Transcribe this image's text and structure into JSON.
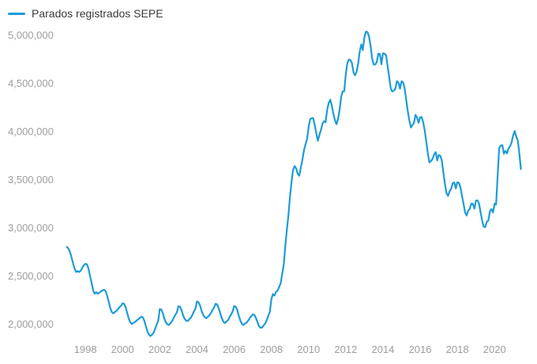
{
  "legend": {
    "label": "Parados registrados SEPE"
  },
  "colors": {
    "line": "#1e9bd8",
    "axis_text": "#9e9e9e",
    "legend_text": "#3a3a3a",
    "background": "#ffffff"
  },
  "chart_data": {
    "type": "line",
    "title": "",
    "xlabel": "",
    "ylabel": "",
    "grid": false,
    "legend_position": "top-left",
    "series_name": "Parados registrados SEPE",
    "frequency": "monthly",
    "x_start": "1997-01",
    "x_end": "2021-06",
    "ylim": [
      1850000,
      5100000
    ],
    "y_ticks": [
      {
        "label": "5,000,000",
        "value": 5000000
      },
      {
        "label": "4,500,000",
        "value": 4500000
      },
      {
        "label": "4,000,000",
        "value": 4000000
      },
      {
        "label": "3,500,000",
        "value": 3500000
      },
      {
        "label": "3,000,000",
        "value": 3000000
      },
      {
        "label": "2,500,000",
        "value": 2500000
      },
      {
        "label": "2,000,000",
        "value": 2000000
      }
    ],
    "x_ticks": [
      {
        "label": "1998",
        "year": 1998
      },
      {
        "label": "2000",
        "year": 2000
      },
      {
        "label": "2002",
        "year": 2002
      },
      {
        "label": "2004",
        "year": 2004
      },
      {
        "label": "2006",
        "year": 2006
      },
      {
        "label": "2008",
        "year": 2008
      },
      {
        "label": "2010",
        "year": 2010
      },
      {
        "label": "2012",
        "year": 2012
      },
      {
        "label": "2014",
        "year": 2014
      },
      {
        "label": "2016",
        "year": 2016
      },
      {
        "label": "2018",
        "year": 2018
      },
      {
        "label": "2020",
        "year": 2020
      }
    ],
    "values": [
      2805000,
      2790000,
      2755000,
      2700000,
      2640000,
      2580000,
      2545000,
      2555000,
      2545000,
      2560000,
      2590000,
      2615000,
      2630000,
      2625000,
      2580000,
      2505000,
      2430000,
      2355000,
      2320000,
      2335000,
      2320000,
      2330000,
      2345000,
      2355000,
      2360000,
      2350000,
      2300000,
      2240000,
      2175000,
      2130000,
      2115000,
      2130000,
      2140000,
      2160000,
      2180000,
      2195000,
      2220000,
      2215000,
      2175000,
      2120000,
      2060000,
      2020000,
      2005000,
      2020000,
      2025000,
      2040000,
      2055000,
      2065000,
      2080000,
      2075000,
      2040000,
      1985000,
      1930000,
      1895000,
      1880000,
      1895000,
      1915000,
      1955000,
      2000000,
      2040000,
      2160000,
      2155000,
      2115000,
      2060000,
      2020000,
      2000000,
      1995000,
      2015000,
      2035000,
      2070000,
      2100000,
      2125000,
      2190000,
      2185000,
      2150000,
      2095000,
      2060000,
      2040000,
      2035000,
      2055000,
      2070000,
      2100000,
      2135000,
      2165000,
      2240000,
      2230000,
      2195000,
      2140000,
      2100000,
      2075000,
      2065000,
      2080000,
      2095000,
      2120000,
      2150000,
      2175000,
      2215000,
      2210000,
      2170000,
      2115000,
      2065000,
      2030000,
      2015000,
      2030000,
      2045000,
      2075000,
      2105000,
      2135000,
      2190000,
      2185000,
      2150000,
      2090000,
      2040000,
      2005000,
      1995000,
      2010000,
      2020000,
      2040000,
      2065000,
      2085000,
      2105000,
      2100000,
      2070000,
      2025000,
      1985000,
      1965000,
      1970000,
      1990000,
      2010000,
      2045000,
      2090000,
      2130000,
      2261925,
      2315331,
      2300975,
      2338517,
      2353575,
      2390424,
      2426916,
      2530001,
      2625368,
      2818026,
      2989269,
      3128963,
      3327801,
      3481859,
      3605402,
      3644880,
      3620139,
      3564889,
      3544095,
      3629080,
      3709447,
      3808353,
      3868946,
      3923603,
      4048493,
      4130625,
      4142000,
      4142425,
      4066202,
      3982368,
      3908578,
      3969661,
      4017763,
      4085976,
      4110294,
      4100073,
      4231003,
      4299263,
      4333669,
      4269360,
      4189659,
      4121801,
      4079742,
      4130927,
      4226744,
      4360926,
      4420462,
      4422359,
      4599829,
      4712098,
      4750867,
      4744235,
      4714122,
      4615269,
      4587455,
      4625634,
      4705279,
      4833521,
      4907817,
      4848723,
      4980778,
      5040222,
      5035243,
      4989193,
      4890928,
      4763680,
      4698814,
      4698783,
      4724355,
      4811383,
      4808908,
      4701338,
      4814435,
      4812486,
      4795866,
      4684301,
      4572385,
      4449701,
      4419860,
      4427930,
      4447650,
      4526804,
      4512116,
      4447711,
      4525691,
      4512153,
      4451939,
      4333016,
      4215031,
      4120304,
      4046276,
      4067955,
      4094042,
      4176369,
      4149298,
      4093508,
      4150755,
      4152986,
      4094770,
      4011171,
      3891403,
      3767054,
      3683061,
      3697496,
      3720297,
      3764982,
      3789823,
      3702974,
      3760231,
      3750876,
      3702317,
      3573036,
      3461128,
      3362811,
      3335924,
      3382324,
      3410182,
      3467026,
      3474281,
      3412781,
      3476528,
      3470248,
      3422551,
      3335868,
      3252130,
      3162162,
      3132844,
      3182060,
      3202509,
      3254703,
      3252867,
      3202297,
      3285761,
      3289040,
      3255084,
      3163566,
      3079491,
      3015686,
      3011433,
      3065804,
      3079711,
      3177659,
      3198184,
      3163605,
      3253853,
      3246047,
      3548312,
      3831203,
      3857776,
      3862883,
      3773034,
      3802814,
      3776485,
      3826043,
      3851312,
      3888137,
      3964353,
      4008789,
      3949640,
      3910628,
      3781250,
      3614339
    ]
  }
}
